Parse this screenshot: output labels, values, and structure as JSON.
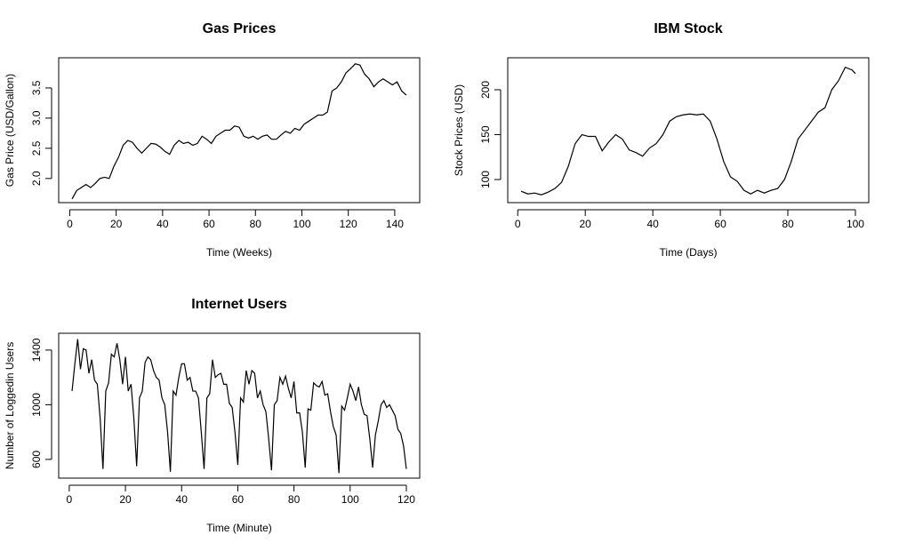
{
  "chart_data": [
    {
      "type": "line",
      "title": "Gas Prices",
      "x_label": "Time (Weeks)",
      "y_label": "Gas Price (USD/Gallon)",
      "x": [
        1,
        3,
        5,
        7,
        9,
        11,
        13,
        15,
        17,
        19,
        21,
        23,
        25,
        27,
        29,
        31,
        33,
        35,
        37,
        39,
        41,
        43,
        45,
        47,
        49,
        51,
        53,
        55,
        57,
        59,
        61,
        63,
        65,
        67,
        69,
        71,
        73,
        75,
        77,
        79,
        81,
        83,
        85,
        87,
        89,
        91,
        93,
        95,
        97,
        99,
        101,
        103,
        105,
        107,
        109,
        111,
        113,
        115,
        117,
        119,
        121,
        123,
        125,
        127,
        129,
        131,
        133,
        135,
        137,
        139,
        141,
        143,
        145
      ],
      "series": [
        {
          "name": "Gas Price",
          "color": "#000000",
          "values": [
            1.66,
            1.8,
            1.85,
            1.9,
            1.85,
            1.92,
            2.0,
            2.02,
            2.0,
            2.2,
            2.35,
            2.55,
            2.63,
            2.6,
            2.5,
            2.42,
            2.5,
            2.58,
            2.57,
            2.52,
            2.45,
            2.4,
            2.55,
            2.63,
            2.58,
            2.6,
            2.55,
            2.58,
            2.7,
            2.65,
            2.58,
            2.7,
            2.75,
            2.8,
            2.8,
            2.87,
            2.85,
            2.7,
            2.67,
            2.7,
            2.65,
            2.7,
            2.72,
            2.65,
            2.65,
            2.72,
            2.78,
            2.75,
            2.83,
            2.8,
            2.9,
            2.95,
            3.0,
            3.05,
            3.05,
            3.1,
            3.45,
            3.5,
            3.6,
            3.75,
            3.82,
            3.9,
            3.88,
            3.73,
            3.65,
            3.52,
            3.6,
            3.65,
            3.6,
            3.55,
            3.6,
            3.45,
            3.38
          ]
        }
      ],
      "xlim": [
        -4.76,
        150.76
      ],
      "ylim": [
        1.6,
        4.0
      ],
      "xticks": [
        0,
        20,
        40,
        60,
        80,
        100,
        120,
        140
      ],
      "yticks": [
        {
          "value": 2,
          "label": "2.0"
        },
        2.5,
        {
          "value": 3,
          "label": "3.0"
        },
        3.5
      ]
    },
    {
      "type": "line",
      "title": "IBM Stock",
      "x_label": "Time (Days)",
      "y_label": "Stock Prices (USD)",
      "x": [
        1,
        3,
        5,
        7,
        9,
        11,
        13,
        15,
        17,
        19,
        21,
        23,
        25,
        27,
        29,
        31,
        33,
        35,
        37,
        39,
        41,
        43,
        45,
        47,
        49,
        51,
        53,
        55,
        57,
        59,
        61,
        63,
        65,
        67,
        69,
        71,
        73,
        75,
        77,
        79,
        81,
        83,
        85,
        87,
        89,
        91,
        93,
        95,
        97,
        99,
        100
      ],
      "series": [
        {
          "name": "Stock Price",
          "color": "#000000",
          "values": [
            87,
            84,
            85,
            83,
            86,
            90,
            97,
            115,
            140,
            150,
            148,
            148,
            132,
            142,
            150,
            145,
            133,
            130,
            126,
            135,
            140,
            150,
            165,
            170,
            172,
            173,
            172,
            173,
            165,
            145,
            120,
            103,
            98,
            88,
            84,
            88,
            85,
            88,
            90,
            100,
            120,
            145,
            155,
            165,
            175,
            180,
            200,
            210,
            225,
            222,
            218
          ]
        }
      ],
      "xlim": [
        -2.96,
        103.96
      ],
      "ylim": [
        74.3,
        235.6
      ],
      "xticks": [
        0,
        20,
        40,
        60,
        80,
        100
      ],
      "yticks": [
        100,
        150,
        200
      ]
    },
    {
      "type": "line",
      "title": "Internet Users",
      "x_label": "Time (Minute)",
      "y_label": "Number of Loggedin Users",
      "x": [
        1,
        2,
        3,
        4,
        5,
        6,
        7,
        8,
        9,
        10,
        11,
        12,
        13,
        14,
        15,
        16,
        17,
        18,
        19,
        20,
        21,
        22,
        23,
        24,
        25,
        26,
        27,
        28,
        29,
        30,
        31,
        32,
        33,
        34,
        35,
        36,
        37,
        38,
        39,
        40,
        41,
        42,
        43,
        44,
        45,
        46,
        47,
        48,
        49,
        50,
        51,
        52,
        53,
        54,
        55,
        56,
        57,
        58,
        59,
        60,
        61,
        62,
        63,
        64,
        65,
        66,
        67,
        68,
        69,
        70,
        71,
        72,
        73,
        74,
        75,
        76,
        77,
        78,
        79,
        80,
        81,
        82,
        83,
        84,
        85,
        86,
        87,
        88,
        89,
        90,
        91,
        92,
        93,
        94,
        95,
        96,
        97,
        98,
        99,
        100,
        101,
        102,
        103,
        104,
        105,
        106,
        107,
        108,
        109,
        110,
        111,
        112,
        113,
        114,
        115,
        116,
        117,
        118,
        119,
        120
      ],
      "series": [
        {
          "name": "Users",
          "color": "#000000",
          "values": [
            1100,
            1300,
            1480,
            1260,
            1410,
            1400,
            1230,
            1330,
            1180,
            1150,
            900,
            530,
            1100,
            1160,
            1370,
            1350,
            1450,
            1330,
            1150,
            1350,
            1100,
            1150,
            900,
            550,
            1050,
            1100,
            1310,
            1350,
            1330,
            1250,
            1200,
            1180,
            1050,
            1000,
            800,
            510,
            1100,
            1070,
            1200,
            1300,
            1300,
            1180,
            1200,
            1100,
            1100,
            1050,
            800,
            530,
            1050,
            1080,
            1330,
            1200,
            1220,
            1230,
            1150,
            1150,
            1010,
            980,
            800,
            560,
            1050,
            1020,
            1250,
            1150,
            1250,
            1230,
            1050,
            1100,
            1000,
            950,
            750,
            520,
            1000,
            1030,
            1200,
            1150,
            1210,
            1120,
            1050,
            1170,
            940,
            940,
            800,
            540,
            970,
            960,
            1160,
            1140,
            1130,
            1170,
            1070,
            1080,
            950,
            840,
            780,
            500,
            990,
            960,
            1050,
            1150,
            1100,
            1030,
            1130,
            1000,
            930,
            920,
            750,
            540,
            780,
            880,
            1000,
            1030,
            980,
            1000,
            960,
            920,
            820,
            790,
            700,
            530
          ]
        }
      ],
      "xlim": [
        -3.76,
        124.76
      ],
      "ylim": [
        463,
        1523
      ],
      "xticks": [
        0,
        20,
        40,
        60,
        80,
        100,
        120
      ],
      "yticks": [
        600,
        1000,
        1400
      ]
    }
  ]
}
